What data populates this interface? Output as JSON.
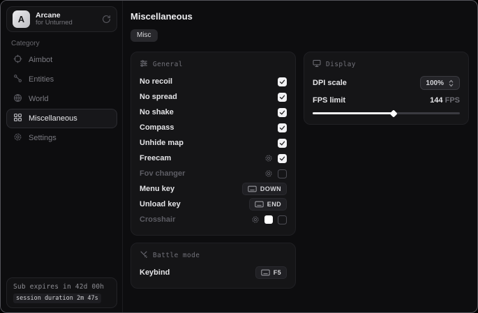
{
  "sidebar": {
    "app": {
      "initial": "A",
      "name": "Arcane",
      "subtitle": "for Unturned",
      "action_icon": "reload-icon"
    },
    "category_label": "Category",
    "items": [
      {
        "label": "Aimbot",
        "icon": "crosshair-icon",
        "active": false
      },
      {
        "label": "Entities",
        "icon": "entities-icon",
        "active": false
      },
      {
        "label": "World",
        "icon": "globe-icon",
        "active": false
      },
      {
        "label": "Miscellaneous",
        "icon": "grid-icon",
        "active": true
      },
      {
        "label": "Settings",
        "icon": "gear-icon",
        "active": false
      }
    ],
    "footer": {
      "line1": "Sub expires in 42d 00h",
      "line2": "session duration 2m 47s"
    }
  },
  "main": {
    "title": "Miscellaneous",
    "tabs": [
      {
        "label": "Misc",
        "active": true
      }
    ],
    "panels": {
      "general": {
        "title": "General",
        "icon": "sliders-icon",
        "rows": [
          {
            "label": "No recoil",
            "control": "checkbox",
            "checked": true
          },
          {
            "label": "No spread",
            "control": "checkbox",
            "checked": true
          },
          {
            "label": "No shake",
            "control": "checkbox",
            "checked": true
          },
          {
            "label": "Compass",
            "control": "checkbox",
            "checked": true
          },
          {
            "label": "Unhide map",
            "control": "checkbox",
            "checked": true
          },
          {
            "label": "Freecam",
            "control": "gear+checkbox",
            "checked": true
          },
          {
            "label": "Fov changer",
            "control": "gear+checkbox",
            "checked": false,
            "dim": true
          },
          {
            "label": "Menu key",
            "control": "keybind",
            "key": "DOWN"
          },
          {
            "label": "Unload key",
            "control": "keybind",
            "key": "END"
          },
          {
            "label": "Crosshair",
            "control": "gear+swatch+checkbox",
            "checked": false,
            "dim": true,
            "swatch_color": "#ffffff"
          }
        ]
      },
      "battle": {
        "title": "Battle mode",
        "icon": "swords-icon",
        "rows": [
          {
            "label": "Keybind",
            "control": "keybind",
            "key": "F5"
          }
        ]
      },
      "display": {
        "title": "Display",
        "icon": "monitor-icon",
        "dpi": {
          "label": "DPI scale",
          "value": "100%",
          "icon": "unfold-icon"
        },
        "fps": {
          "label": "FPS limit",
          "value": "144",
          "unit": "FPS",
          "slider_percent": 55
        }
      }
    }
  },
  "colors": {
    "window_bg": "#0d0d0f",
    "panel_bg": "#151517",
    "accent_text": "#ededf0",
    "dim_text": "#5d5d64",
    "checkbox_checked": "#f2f2f4"
  }
}
